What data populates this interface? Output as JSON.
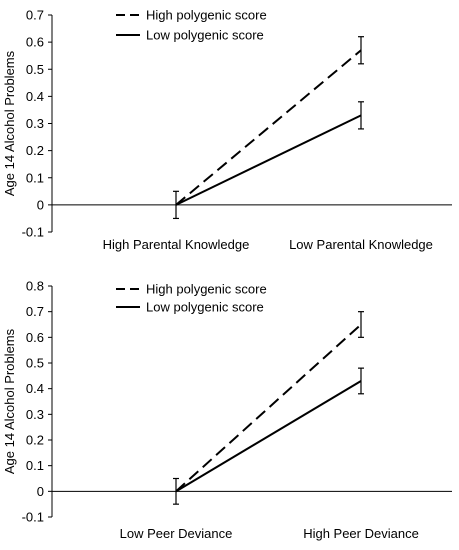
{
  "chart_data": [
    {
      "type": "line",
      "ylabel": "Age 14 Alcohol Problems",
      "categories": [
        "High Parental Knowledge",
        "Low Parental Knowledge"
      ],
      "ylim": [
        -0.1,
        0.7
      ],
      "yticks": [
        "-0.1",
        "0",
        "0.1",
        "0.2",
        "0.3",
        "0.4",
        "0.5",
        "0.6",
        "0.7"
      ],
      "grid": false,
      "legend_position": "top-left",
      "series": [
        {
          "name": "High polygenic score",
          "style": "dashed",
          "values": [
            0,
            0.57
          ],
          "errors": [
            0.05,
            0.05
          ]
        },
        {
          "name": "Low polygenic score",
          "style": "solid",
          "values": [
            0,
            0.33
          ],
          "errors": [
            0.05,
            0.05
          ]
        }
      ]
    },
    {
      "type": "line",
      "ylabel": "Age 14 Alcohol Problems",
      "categories": [
        "Low Peer Deviance",
        "High Peer Deviance"
      ],
      "ylim": [
        -0.1,
        0.8
      ],
      "yticks": [
        "-0.1",
        "0",
        "0.1",
        "0.2",
        "0.3",
        "0.4",
        "0.5",
        "0.6",
        "0.7",
        "0.8"
      ],
      "grid": false,
      "legend_position": "top-left",
      "series": [
        {
          "name": "High polygenic score",
          "style": "dashed",
          "values": [
            0,
            0.65
          ],
          "errors": [
            0.05,
            0.05
          ]
        },
        {
          "name": "Low polygenic score",
          "style": "solid",
          "values": [
            0,
            0.43
          ],
          "errors": [
            0.05,
            0.05
          ]
        }
      ]
    }
  ]
}
